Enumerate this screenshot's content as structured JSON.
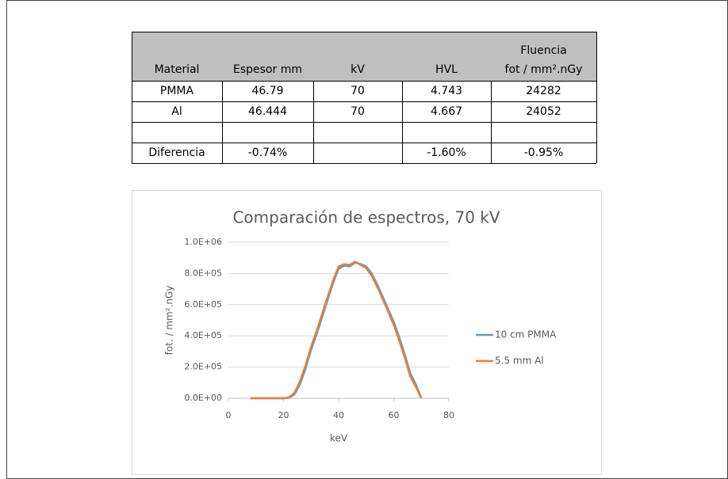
{
  "table": {
    "header": [
      "Material",
      "Espesor mm",
      "kV",
      "HVL",
      "Fluencia",
      "fot / mm².nGy"
    ],
    "rows": [
      [
        "PMMA",
        "46.79",
        "70",
        "4.743",
        "24282"
      ],
      [
        "Al",
        "46.444",
        "70",
        "4.667",
        "24052"
      ],
      [
        "Diferencia",
        "-0.74%",
        null,
        "-1.60%",
        "-0.95%"
      ]
    ]
  },
  "chart_data": {
    "type": "line",
    "title": "Comparación de espectros, 70 kV",
    "xlabel": "keV",
    "ylabel": "fot. / mm².nGy",
    "xlim": [
      0,
      80
    ],
    "xticks": [
      0,
      20,
      40,
      60,
      80
    ],
    "ylim": [
      0,
      1000000
    ],
    "yticks": [
      {
        "value": 0,
        "label": "0.0E+00"
      },
      {
        "value": 200000,
        "label": "2.0E+05"
      },
      {
        "value": 400000,
        "label": "4.0E+05"
      },
      {
        "value": 600000,
        "label": "6.0E+05"
      },
      {
        "value": 800000,
        "label": "8.0E+05"
      },
      {
        "value": 1000000,
        "label": "1.0E+06"
      }
    ],
    "x": [
      8,
      20,
      22,
      24,
      26,
      28,
      30,
      32,
      34,
      36,
      38,
      40,
      42,
      44,
      46,
      48,
      50,
      52,
      54,
      56,
      58,
      60,
      62,
      64,
      66,
      68,
      70
    ],
    "series": [
      {
        "name": "10 cm PMMA",
        "color": "#5b9bd5",
        "values": [
          0,
          0,
          3000,
          25000,
          90000,
          190000,
          310000,
          410000,
          520000,
          630000,
          740000,
          830000,
          850000,
          845000,
          870000,
          860000,
          845000,
          800000,
          730000,
          650000,
          570000,
          490000,
          390000,
          280000,
          160000,
          90000,
          0
        ]
      },
      {
        "name": "5.5 mm Al",
        "color": "#ed7d31",
        "values": [
          0,
          0,
          6000,
          35000,
          110000,
          210000,
          330000,
          430000,
          540000,
          650000,
          755000,
          845000,
          860000,
          855000,
          875000,
          855000,
          835000,
          785000,
          715000,
          635000,
          555000,
          470000,
          370000,
          260000,
          140000,
          75000,
          0
        ]
      }
    ],
    "legend": "right"
  }
}
